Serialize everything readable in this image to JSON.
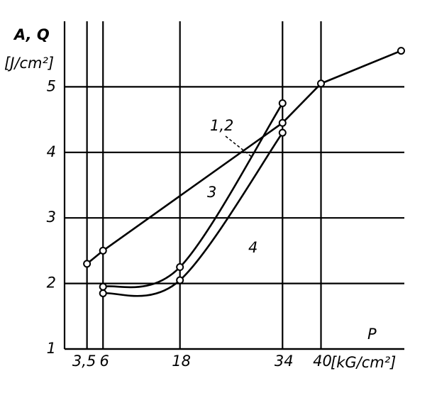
{
  "chart_data": {
    "type": "line",
    "y_label": "A, Q",
    "y_unit": "[J/cm²]",
    "x_label": "P",
    "x_unit": "[kG/cm²]",
    "xlim": [
      0,
      53
    ],
    "ylim": [
      1,
      6
    ],
    "xticks": [
      {
        "value": 3.5,
        "label": "3,5"
      },
      6,
      18,
      34,
      40
    ],
    "yticks": [
      1,
      2,
      3,
      4,
      5
    ],
    "grid": true,
    "series": [
      {
        "name": "1,2",
        "color": "#000000",
        "x": [
          6,
          18,
          34
        ],
        "values": [
          1.95,
          2.25,
          4.75
        ]
      },
      {
        "name": "3",
        "color": "#000000",
        "x": [
          3.5,
          6,
          34,
          40,
          52.5
        ],
        "values": [
          2.3,
          2.5,
          4.45,
          5.05,
          5.55
        ]
      },
      {
        "name": "4",
        "color": "#000000",
        "x": [
          6,
          18,
          34
        ],
        "values": [
          1.85,
          2.05,
          4.3
        ]
      }
    ]
  }
}
